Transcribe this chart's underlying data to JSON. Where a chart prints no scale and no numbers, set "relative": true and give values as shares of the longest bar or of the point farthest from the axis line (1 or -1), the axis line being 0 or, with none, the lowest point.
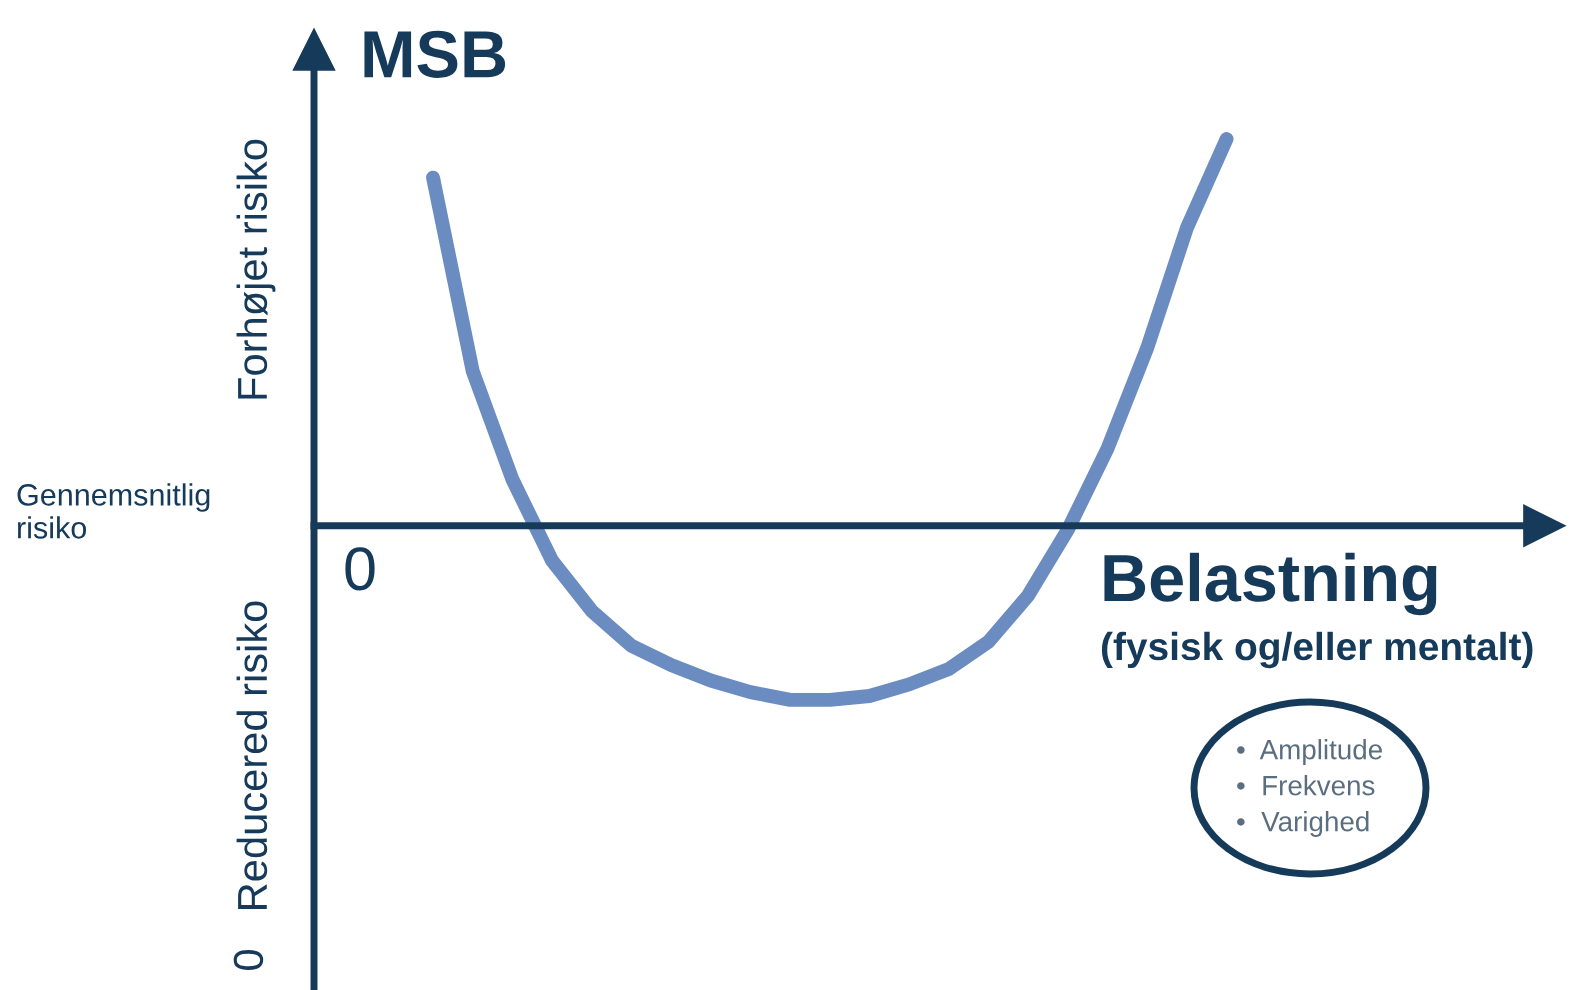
{
  "chart_data": {
    "type": "line",
    "relative": true,
    "ylabel": "MSB",
    "xlabel": "Belastning",
    "annotations": [
      "(fysisk og/eller mentalt)",
      "Forhøjet risiko",
      "Gennemsnitlig\nrisiko",
      "Reducered risiko",
      "0",
      "0",
      "•  Amplitude\n•  Frekvens\n•  Varighed"
    ],
    "categories": [
      null,
      null,
      null,
      null,
      null,
      null,
      null,
      null,
      null,
      null,
      null,
      null,
      null,
      null,
      null,
      null,
      null,
      null,
      null,
      null,
      null,
      null,
      null,
      null,
      null,
      null,
      null,
      null,
      null,
      null,
      null,
      null
    ],
    "series": [
      {
        "color": "#6b8cc0",
        "values": [
          null,
          null,
          null,
          0.9,
          0.4,
          0.12,
          -0.09,
          -0.22,
          -0.31,
          -0.36,
          -0.4,
          -0.43,
          -0.45,
          -0.45,
          -0.44,
          -0.41,
          -0.37,
          -0.3,
          -0.18,
          -0.01,
          0.2,
          0.46,
          0.77,
          1.0,
          null,
          null,
          null,
          null,
          null,
          null,
          null,
          null
        ]
      }
    ],
    "legend": false,
    "marker": "none",
    "line_style": "solid"
  }
}
